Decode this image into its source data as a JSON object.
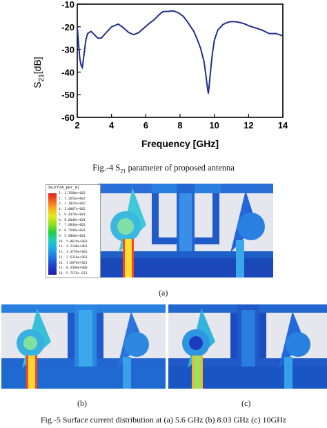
{
  "chart_data": {
    "type": "line",
    "title": "",
    "xlabel": "Frequency [GHz]",
    "ylabel": "S21[dB]",
    "xlim": [
      2,
      14
    ],
    "ylim": [
      -60,
      -10
    ],
    "x_ticks": [
      "2",
      "4",
      "6",
      "8",
      "10",
      "12",
      "14"
    ],
    "y_ticks": [
      "-10",
      "-20",
      "-30",
      "-40",
      "-50",
      "-60"
    ],
    "grid": false,
    "line_color": "#1f2d8c",
    "series": [
      {
        "x": [
          2.0,
          2.08,
          2.15,
          2.22,
          2.3,
          2.4,
          2.5,
          2.6,
          2.8,
          3.0,
          3.2,
          3.4,
          3.7,
          4.0,
          4.4,
          4.7,
          5.0,
          5.3,
          5.6,
          5.9,
          6.2,
          6.5,
          6.8,
          7.0,
          7.3,
          7.6,
          7.9,
          8.2,
          8.5,
          8.8,
          9.0,
          9.2,
          9.4,
          9.5,
          9.6,
          9.65,
          9.7,
          9.8,
          9.9,
          10.0,
          10.2,
          10.5,
          10.8,
          11.0,
          11.3,
          11.7,
          12.0,
          12.4,
          12.8,
          13.2,
          13.6,
          14.0
        ],
        "y": [
          -20.0,
          -28.0,
          -34.0,
          -37.0,
          -38.0,
          -32.0,
          -26.0,
          -23.0,
          -22.0,
          -23.5,
          -25.0,
          -25.0,
          -22.5,
          -20.0,
          -18.8,
          -20.5,
          -22.5,
          -23.5,
          -22.5,
          -20.5,
          -18.5,
          -16.8,
          -14.5,
          -13.3,
          -13.2,
          -13.0,
          -13.8,
          -15.5,
          -18.5,
          -22.0,
          -25.5,
          -29.5,
          -35.5,
          -41.0,
          -47.0,
          -49.5,
          -46.0,
          -38.0,
          -31.0,
          -26.0,
          -21.5,
          -19.0,
          -18.0,
          -17.7,
          -17.8,
          -18.5,
          -19.5,
          -20.5,
          -21.5,
          -23.0,
          -23.0,
          -24.0
        ]
      }
    ]
  },
  "captions": {
    "fig4_prefix": "Fig.-4 S",
    "fig4_sub": "21",
    "fig4_suffix": " parameter of proposed antenna",
    "label_a": "(a)",
    "label_b": "(b)",
    "label_c": "(c)",
    "fig5": "Fig.-5 Surface current distribution at (a) 5.6 GHz (b) 8.03 GHz   (c) 10GHz"
  },
  "legend": {
    "title": "Jsurf[A_per_m]",
    "entries": [
      "1.3500e+002",
      "1.2656e+002",
      "1.1824e+002",
      "1.0087e+002",
      "9.4470e+001",
      "8.6040e+001",
      "7.6040e+001",
      "6.7500e+001",
      "5.9060e+001",
      "5.0620e+001",
      "4.2180e+001",
      "3.3750e+001",
      "2.5310e+001",
      "1.6870e+001",
      "8.4400e+000",
      "5.7176e-031"
    ]
  }
}
